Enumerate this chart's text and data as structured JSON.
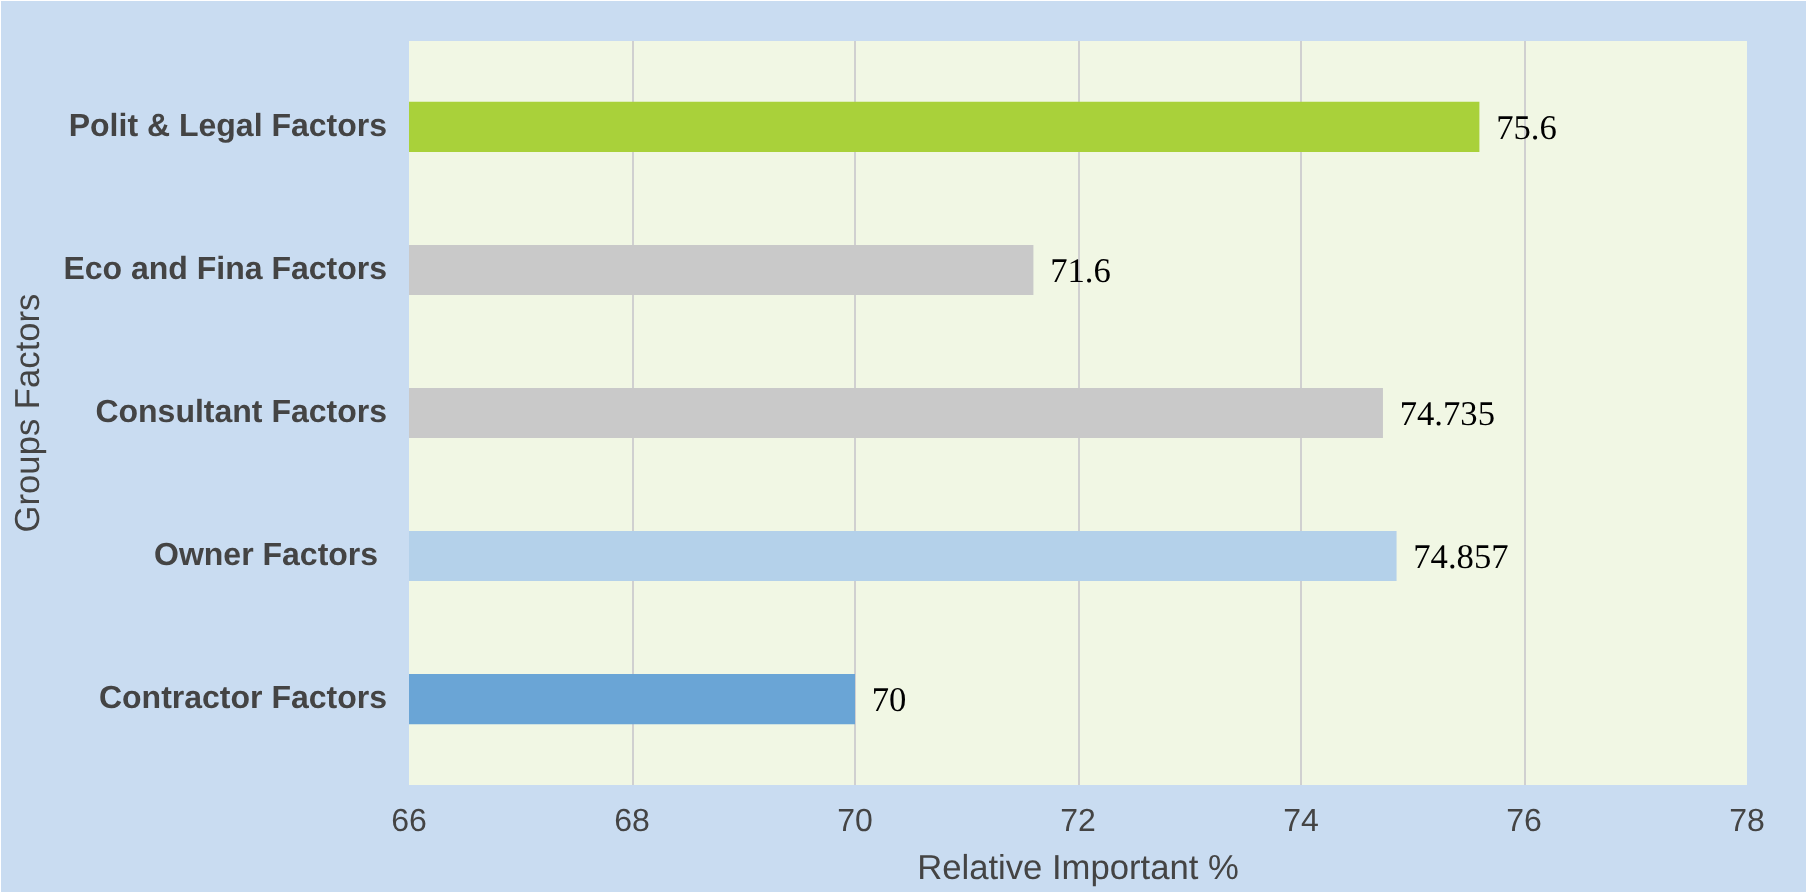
{
  "chart_data": {
    "type": "bar",
    "orientation": "horizontal",
    "xlabel": "Relative Important %",
    "ylabel": "Groups Factors",
    "categories": [
      "Polit & Legal Factors",
      "Eco and Fina Factors",
      "Consultant Factors",
      "Owner  Factors",
      "Contractor Factors"
    ],
    "values": [
      75.6,
      71.6,
      74.735,
      74.857,
      70
    ],
    "colors": [
      "#a9d13a",
      "#c9c9c9",
      "#c9c9c9",
      "#b4d1ea",
      "#6aa5d6"
    ],
    "xlim": [
      66,
      78
    ],
    "xticks": [
      66,
      68,
      70,
      72,
      74,
      76,
      78
    ],
    "grid": "x",
    "data_labels": true
  }
}
